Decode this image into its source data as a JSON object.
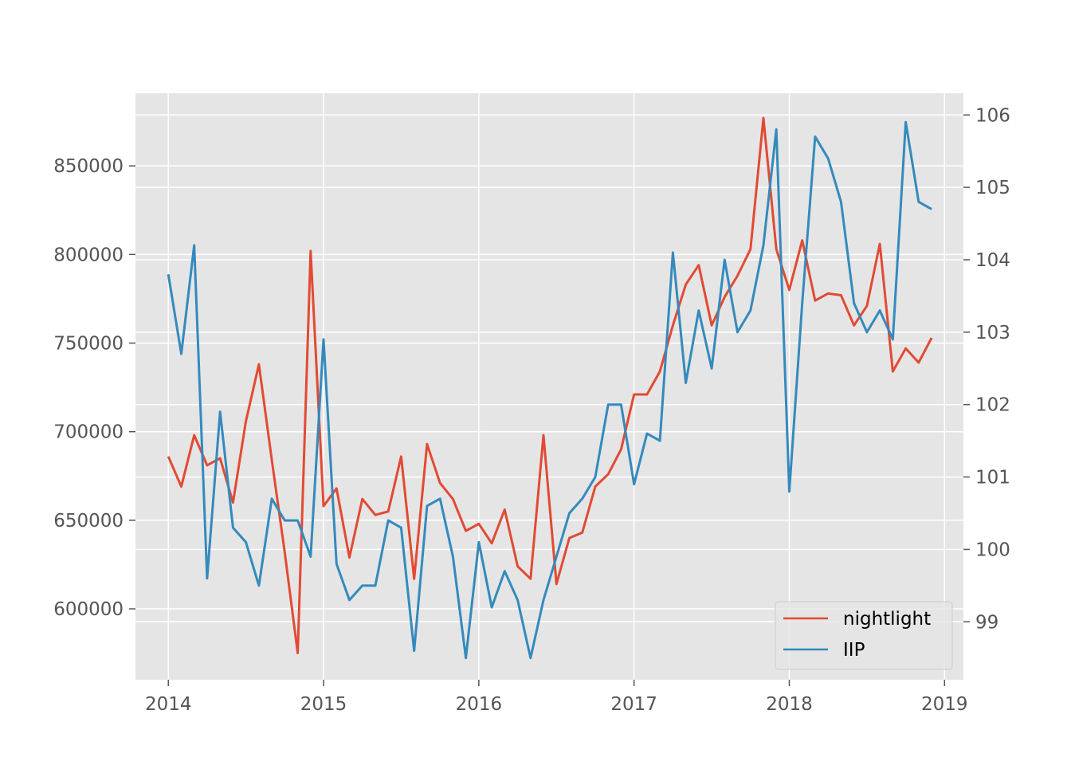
{
  "chart_data": {
    "type": "line",
    "title": "",
    "xlabel": "",
    "ylabel": "",
    "y2label": "",
    "grid": true,
    "legend_position": "lower-right",
    "x": [
      "2014-01",
      "2014-02",
      "2014-03",
      "2014-04",
      "2014-05",
      "2014-06",
      "2014-07",
      "2014-08",
      "2014-09",
      "2014-10",
      "2014-11",
      "2014-12",
      "2015-01",
      "2015-02",
      "2015-03",
      "2015-04",
      "2015-05",
      "2015-06",
      "2015-07",
      "2015-08",
      "2015-09",
      "2015-10",
      "2015-11",
      "2015-12",
      "2016-01",
      "2016-02",
      "2016-03",
      "2016-04",
      "2016-05",
      "2016-06",
      "2016-07",
      "2016-08",
      "2016-09",
      "2016-10",
      "2016-11",
      "2016-12",
      "2017-01",
      "2017-02",
      "2017-03",
      "2017-04",
      "2017-05",
      "2017-06",
      "2017-07",
      "2017-08",
      "2017-09",
      "2017-10",
      "2017-11",
      "2017-12",
      "2018-01",
      "2018-02",
      "2018-03",
      "2018-04",
      "2018-05",
      "2018-06",
      "2018-07",
      "2018-08",
      "2018-09",
      "2018-10",
      "2018-11",
      "2018-12"
    ],
    "x_ticks": [
      "2014",
      "2015",
      "2016",
      "2017",
      "2018",
      "2019"
    ],
    "xlim": [
      "2013-10-15",
      "2019-02-15"
    ],
    "ylim": [
      560000,
      891000
    ],
    "y_ticks": [
      600000,
      650000,
      700000,
      750000,
      800000,
      850000
    ],
    "y_tick_labels": [
      "600000",
      "650000",
      "700000",
      "750000",
      "800000",
      "850000"
    ],
    "y2lim": [
      98.2,
      106.3
    ],
    "y2_ticks": [
      99,
      100,
      101,
      102,
      103,
      104,
      105,
      106
    ],
    "y2_tick_labels": [
      "99",
      "100",
      "101",
      "102",
      "103",
      "104",
      "105",
      "106"
    ],
    "series": [
      {
        "name": "nightlight",
        "axis": "left",
        "color": "#e24a33",
        "values": [
          686000,
          669000,
          698000,
          681000,
          685000,
          660000,
          706000,
          738000,
          684000,
          632000,
          575000,
          802000,
          658000,
          668000,
          629000,
          662000,
          653000,
          655000,
          686000,
          617000,
          693000,
          671000,
          662000,
          644000,
          648000,
          637000,
          656000,
          624000,
          617000,
          698000,
          614000,
          640000,
          643000,
          669000,
          676000,
          690000,
          721000,
          721000,
          734000,
          760000,
          783000,
          794000,
          760000,
          776000,
          788000,
          803000,
          877000,
          803000,
          780000,
          808000,
          774000,
          778000,
          777000,
          760000,
          771000,
          806000,
          734000,
          747000,
          739000,
          753000
        ]
      },
      {
        "name": "IIP",
        "axis": "right",
        "color": "#348abd",
        "values": [
          103.8,
          102.7,
          104.2,
          99.6,
          101.9,
          100.3,
          100.1,
          99.5,
          100.7,
          100.4,
          100.4,
          99.9,
          102.9,
          99.8,
          99.3,
          99.5,
          99.5,
          100.4,
          100.3,
          98.6,
          100.6,
          100.7,
          99.9,
          98.5,
          100.1,
          99.2,
          99.7,
          99.3,
          98.5,
          99.3,
          99.9,
          100.5,
          100.7,
          101.0,
          102.0,
          102.0,
          100.9,
          101.6,
          101.5,
          104.1,
          102.3,
          103.3,
          102.5,
          104.0,
          103.0,
          103.3,
          104.2,
          105.8,
          100.8,
          103.4,
          105.7,
          105.4,
          104.8,
          103.4,
          103.0,
          103.3,
          102.9,
          105.9,
          104.8,
          104.7
        ]
      }
    ]
  }
}
